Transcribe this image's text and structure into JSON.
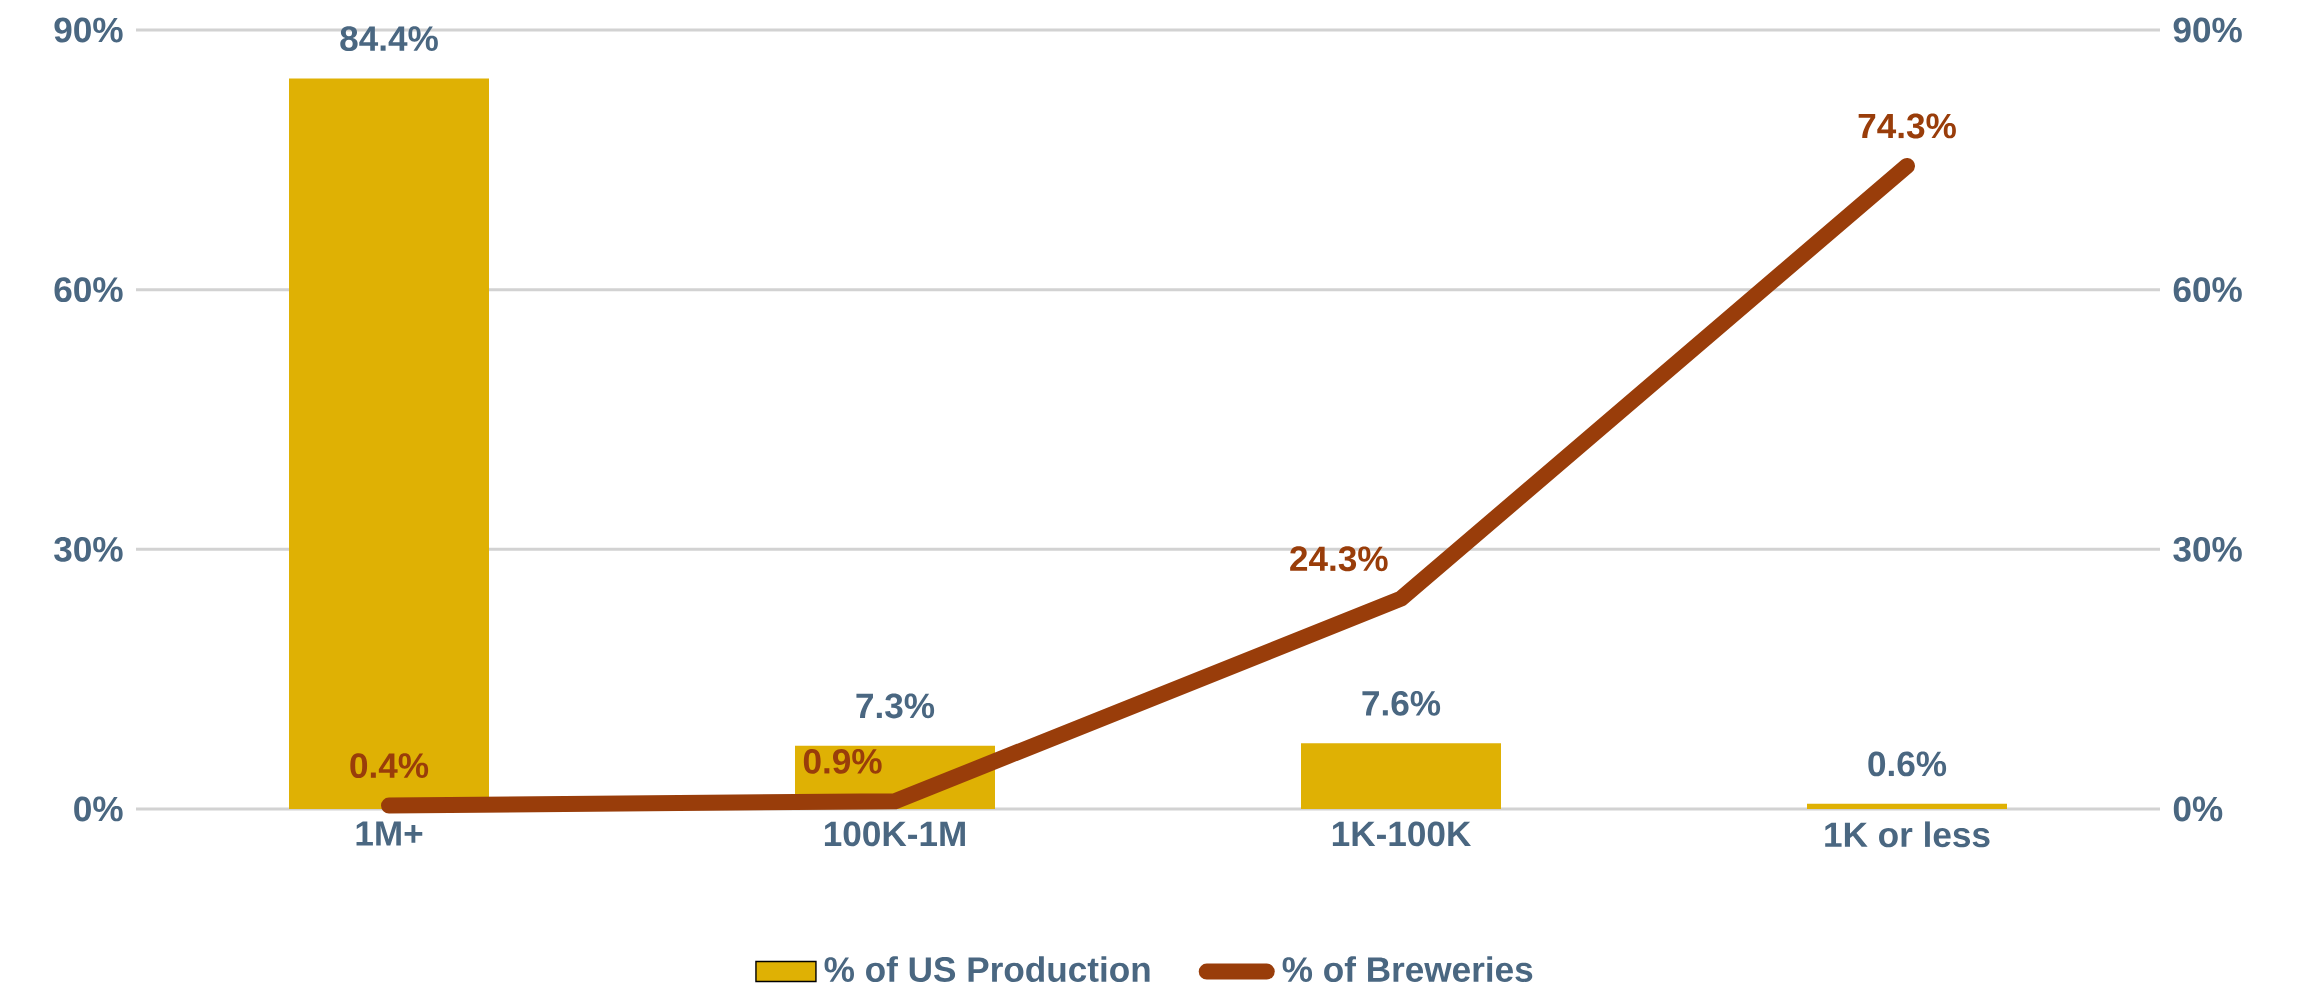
{
  "chart_data": {
    "type": "bar",
    "categories": [
      "1M+",
      "100K-1M",
      "1K-100K",
      "1K or less"
    ],
    "series": [
      {
        "name": "% of US Production",
        "color": "#dfb104",
        "values": [
          84.4,
          7.3,
          7.6,
          0.6
        ],
        "value_labels": [
          "84.4%",
          "7.3%",
          "7.6%",
          "0.6%"
        ]
      },
      {
        "name": "% of Breweries",
        "type": "line",
        "axis": "y2",
        "color": "#993d0a",
        "values": [
          0.4,
          0.9,
          24.3,
          74.3
        ],
        "value_labels": [
          "0.4%",
          "0.9%",
          "24.3%",
          "74.3%"
        ]
      }
    ],
    "ylim": [
      0,
      90
    ],
    "yticks": [
      {
        "value": 0,
        "label": "0%"
      },
      {
        "value": 30,
        "label": "30%"
      },
      {
        "value": 60,
        "label": "60%"
      },
      {
        "value": 90,
        "label": "90%"
      }
    ],
    "y2lim": [
      0,
      90
    ],
    "y2ticks": [
      {
        "value": 0,
        "label": "0%"
      },
      {
        "value": 30,
        "label": "30%"
      },
      {
        "value": 60,
        "label": "60%"
      },
      {
        "value": 90,
        "label": "90%"
      }
    ],
    "grid": "y",
    "legend": "bottom"
  }
}
